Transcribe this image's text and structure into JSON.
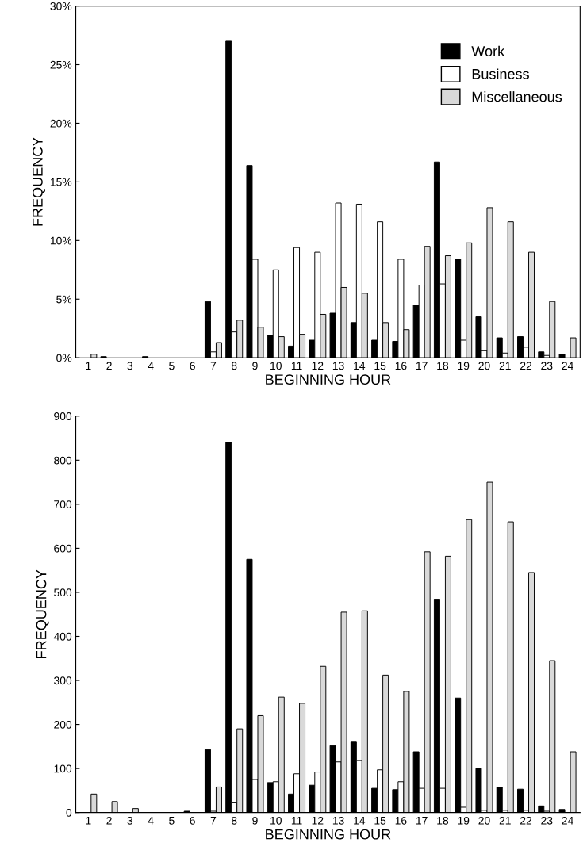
{
  "chart_data": [
    {
      "type": "bar",
      "ylabel": "FREQUENCY",
      "xlabel": "BEGINNING HOUR",
      "categories": [
        "1",
        "2",
        "3",
        "4",
        "5",
        "6",
        "7",
        "8",
        "9",
        "10",
        "11",
        "12",
        "13",
        "14",
        "15",
        "16",
        "17",
        "18",
        "19",
        "20",
        "21",
        "22",
        "23",
        "24"
      ],
      "ylim": [
        0,
        30
      ],
      "yticks": [
        {
          "value": 0,
          "label": "0%"
        },
        {
          "value": 5,
          "label": "5%"
        },
        {
          "value": 10,
          "label": "10%"
        },
        {
          "value": 15,
          "label": "15%"
        },
        {
          "value": 20,
          "label": "20%"
        },
        {
          "value": 25,
          "label": "25%"
        },
        {
          "value": 30,
          "label": "30%"
        }
      ],
      "legend": "top right",
      "grid": false,
      "series": [
        {
          "name": "Work",
          "color": "#000000",
          "values": [
            0,
            0.1,
            0,
            0.1,
            0,
            0,
            4.8,
            27,
            16.4,
            1.9,
            1.0,
            1.5,
            3.8,
            3.0,
            1.5,
            1.4,
            4.5,
            16.7,
            8.4,
            3.5,
            1.7,
            1.8,
            0.5,
            0.3
          ]
        },
        {
          "name": "Business",
          "color": "#ffffff",
          "values": [
            0,
            0,
            0,
            0,
            0,
            0,
            0.5,
            2.2,
            8.4,
            7.5,
            9.4,
            9.0,
            13.2,
            13.1,
            11.6,
            8.4,
            6.2,
            6.3,
            1.5,
            0.6,
            0.4,
            0.9,
            0.2,
            0
          ]
        },
        {
          "name": "Miscellaneous",
          "color": "#d9d9d9",
          "values": [
            0.3,
            0,
            0,
            0,
            0,
            0,
            1.3,
            3.2,
            2.6,
            1.8,
            2.0,
            3.7,
            6.0,
            5.5,
            3.0,
            2.4,
            9.5,
            8.7,
            9.8,
            12.8,
            11.6,
            9.0,
            4.8,
            1.7
          ]
        }
      ]
    },
    {
      "type": "bar",
      "ylabel": "FREQUENCY",
      "xlabel": "BEGINNING HOUR",
      "categories": [
        "1",
        "2",
        "3",
        "4",
        "5",
        "6",
        "7",
        "8",
        "9",
        "10",
        "11",
        "12",
        "13",
        "14",
        "15",
        "16",
        "17",
        "18",
        "19",
        "20",
        "21",
        "22",
        "23",
        "24"
      ],
      "ylim": [
        0,
        900
      ],
      "yticks": [
        0,
        100,
        200,
        300,
        400,
        500,
        600,
        700,
        800,
        900
      ],
      "grid": false,
      "series": [
        {
          "color": "#000000",
          "values": [
            0,
            0,
            0,
            0,
            0,
            3,
            143,
            840,
            575,
            68,
            42,
            62,
            152,
            160,
            55,
            52,
            138,
            483,
            260,
            100,
            57,
            53,
            15,
            7
          ]
        },
        {
          "color": "#ffffff",
          "values": [
            0,
            0,
            0,
            0,
            0,
            0,
            3,
            22,
            75,
            70,
            88,
            92,
            115,
            118,
            97,
            70,
            55,
            55,
            12,
            5,
            5,
            5,
            3,
            0
          ]
        },
        {
          "color": "#d9d9d9",
          "values": [
            42,
            25,
            9,
            0,
            0,
            0,
            58,
            190,
            220,
            262,
            248,
            332,
            455,
            458,
            312,
            275,
            592,
            582,
            665,
            750,
            660,
            545,
            345,
            138
          ]
        }
      ]
    }
  ]
}
